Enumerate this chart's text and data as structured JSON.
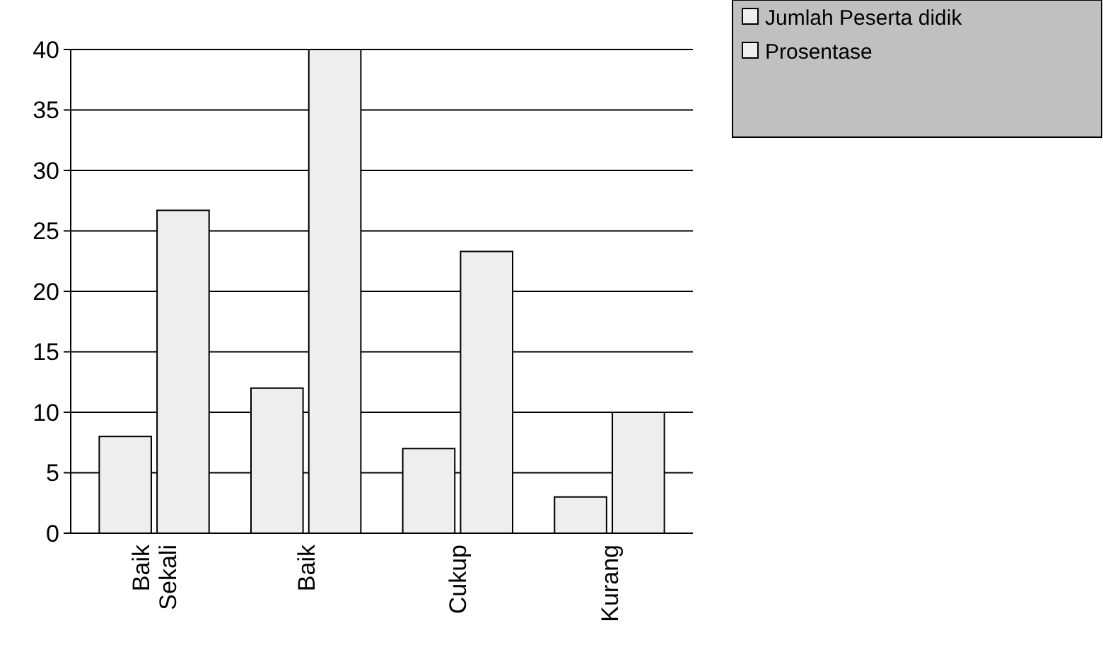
{
  "chart_data": {
    "type": "bar",
    "categories": [
      "Baik Sekali",
      "Baik",
      "Cukup",
      "Kurang"
    ],
    "series": [
      {
        "name": "Jumlah Peserta didik",
        "color": "#eeeeee",
        "values": [
          8,
          12,
          7,
          3
        ]
      },
      {
        "name": "Prosentase",
        "color": "#eeeeee",
        "values": [
          26.7,
          40,
          23.3,
          10
        ]
      }
    ],
    "ylim": [
      0,
      40
    ],
    "yticks": [
      0,
      5,
      10,
      15,
      20,
      25,
      30,
      35,
      40
    ],
    "grid": "y",
    "legend": "top right"
  }
}
